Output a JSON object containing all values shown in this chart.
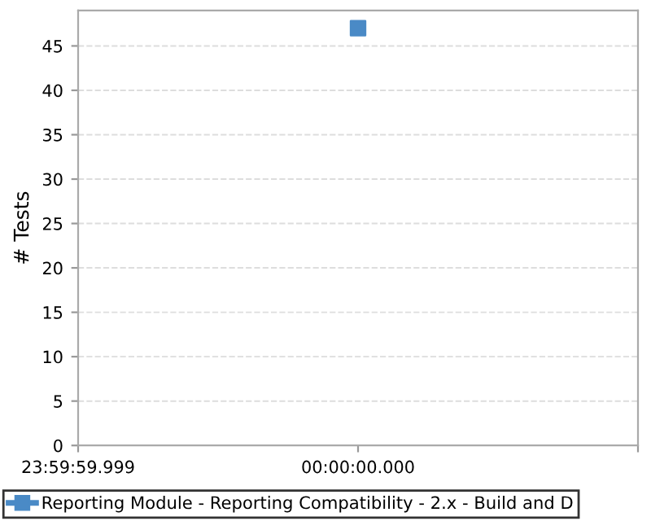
{
  "chart_data": {
    "type": "scatter",
    "ylabel": "# Tests",
    "categories": [
      "23:59:59.999",
      "00:00:00.000",
      null
    ],
    "series": [
      {
        "name": "Reporting Module - Reporting Compatibility - 2.x - Build and D",
        "color": "#4a8ac6",
        "values": [
          null,
          47,
          null
        ]
      }
    ],
    "ylim": [
      0,
      49
    ],
    "yticks": [
      0,
      5,
      10,
      15,
      20,
      25,
      30,
      35,
      40,
      45
    ],
    "grid": "y",
    "legend": "bottom",
    "marker": "square"
  }
}
